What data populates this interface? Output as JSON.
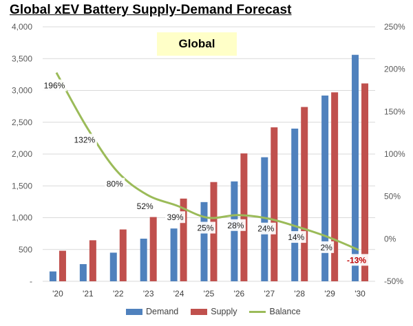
{
  "chart_data": {
    "type": "bar",
    "title": "Global xEV Battery Supply-Demand Forecast",
    "annotation": "Global",
    "categories": [
      "'20",
      "'21",
      "'22",
      "'23",
      "'24",
      "'25",
      "'26",
      "'27",
      "'28",
      "'29",
      "'30"
    ],
    "series": [
      {
        "name": "Demand",
        "type": "bar",
        "axis": "left",
        "color": "#4f81bd",
        "values": [
          155,
          270,
          450,
          670,
          830,
          1245,
          1570,
          1950,
          2400,
          2920,
          3560
        ]
      },
      {
        "name": "Supply",
        "type": "bar",
        "axis": "left",
        "color": "#c0504d",
        "values": [
          480,
          645,
          815,
          1010,
          1300,
          1560,
          2010,
          2420,
          2740,
          2970,
          3110
        ]
      },
      {
        "name": "Balance",
        "type": "line",
        "axis": "right",
        "color": "#9bbb59",
        "values": [
          196,
          132,
          80,
          52,
          39,
          25,
          28,
          24,
          14,
          2,
          -13
        ],
        "labels": [
          "196%",
          "132%",
          "80%",
          "52%",
          "39%",
          "25%",
          "28%",
          "24%",
          "14%",
          "2%",
          "-13%"
        ]
      }
    ],
    "y_left": {
      "min": 0,
      "max": 4000,
      "step": 500,
      "ticks": [
        "-",
        "500",
        "1,000",
        "1,500",
        "2,000",
        "2,500",
        "3,000",
        "3,500",
        "4,000"
      ]
    },
    "y_right": {
      "min": -50,
      "max": 250,
      "step": 50,
      "ticks": [
        "-50%",
        "0%",
        "50%",
        "100%",
        "150%",
        "200%",
        "250%"
      ]
    },
    "grid": true,
    "legend_position": "bottom"
  }
}
